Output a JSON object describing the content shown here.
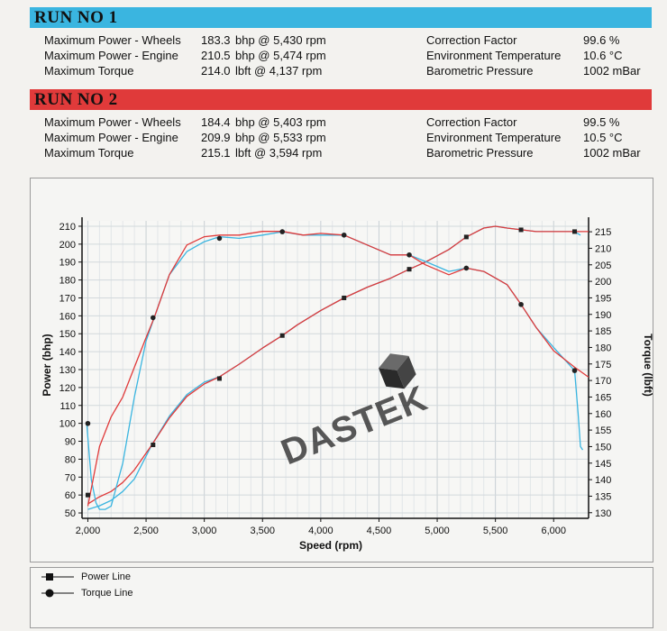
{
  "run1": {
    "title": "RUN NO 1",
    "color": "#3ab5e0",
    "rows": [
      {
        "label": "Maximum Power - Wheels",
        "value": "183.3",
        "unit": "bhp @ 5,430 rpm",
        "rlabel": "Correction Factor",
        "rvalue": "99.6 %"
      },
      {
        "label": "Maximum Power - Engine",
        "value": "210.5",
        "unit": "bhp @ 5,474 rpm",
        "rlabel": "Environment Temperature",
        "rvalue": "10.6 °C"
      },
      {
        "label": "Maximum Torque",
        "value": "214.0",
        "unit": "lbft @ 4,137 rpm",
        "rlabel": "Barometric Pressure",
        "rvalue": "1002 mBar"
      }
    ]
  },
  "run2": {
    "title": "RUN NO 2",
    "color": "#e03a3a",
    "rows": [
      {
        "label": "Maximum Power - Wheels",
        "value": "184.4",
        "unit": "bhp @ 5,403 rpm",
        "rlabel": "Correction Factor",
        "rvalue": "99.5 %"
      },
      {
        "label": "Maximum Power - Engine",
        "value": "209.9",
        "unit": "bhp @ 5,533 rpm",
        "rlabel": "Environment Temperature",
        "rvalue": "10.5 °C"
      },
      {
        "label": "Maximum Torque",
        "value": "215.1",
        "unit": "lbft @ 3,594 rpm",
        "rlabel": "Barometric Pressure",
        "rvalue": "1002 mBar"
      }
    ]
  },
  "watermark": "DASTEK",
  "legend": [
    {
      "label": "Power Line",
      "marker": "square"
    },
    {
      "label": "Torque Line",
      "marker": "circle"
    }
  ],
  "chart_data": {
    "type": "line",
    "xlabel": "Speed (rpm)",
    "ylabel_left": "Power (bhp)",
    "ylabel_right": "Torque (lbft)",
    "xlim": [
      1950,
      6300
    ],
    "ylim_left": [
      47,
      213
    ],
    "ylim_right": [
      128.3,
      218.3
    ],
    "xticks": [
      2000,
      2500,
      3000,
      3500,
      4000,
      4500,
      5000,
      5500,
      6000
    ],
    "xtick_labels": [
      "2,000",
      "2,500",
      "3,000",
      "3,500",
      "4,000",
      "4,500",
      "5,000",
      "5,500",
      "6,000"
    ],
    "yticks_left": [
      50,
      60,
      70,
      80,
      90,
      100,
      110,
      120,
      130,
      140,
      150,
      160,
      170,
      180,
      190,
      200,
      210
    ],
    "yticks_right": [
      130,
      135,
      140,
      145,
      150,
      155,
      160,
      165,
      170,
      175,
      180,
      185,
      190,
      195,
      200,
      205,
      210,
      215
    ],
    "grid": true,
    "series": [
      {
        "name": "Power Line",
        "run": "RUN NO 1",
        "axis": "left",
        "color": "#3ab5e0",
        "x": [
          2000,
          2100,
          2200,
          2300,
          2400,
          2550,
          2700,
          2850,
          3000,
          3130,
          3300,
          3500,
          3670,
          3800,
          4000,
          4200,
          4400,
          4600,
          4760,
          4900,
          5100,
          5250,
          5400,
          5500,
          5600,
          5720,
          5850,
          6000,
          6180,
          6230
        ],
        "y": [
          52,
          54,
          57,
          62,
          69,
          88,
          104,
          116,
          123,
          126,
          133,
          142,
          149,
          155,
          163,
          170,
          176,
          181,
          186,
          190,
          197,
          204,
          209,
          210,
          209,
          208,
          207,
          207,
          207,
          205
        ]
      },
      {
        "name": "Power Line",
        "run": "RUN NO 2",
        "axis": "left",
        "color": "#e03a3a",
        "x": [
          2000,
          2100,
          2200,
          2300,
          2400,
          2550,
          2700,
          2850,
          3000,
          3130,
          3300,
          3500,
          3670,
          3800,
          4000,
          4200,
          4400,
          4600,
          4760,
          4900,
          5100,
          5250,
          5400,
          5500,
          5600,
          5720,
          5850,
          6000,
          6180,
          6300
        ],
        "y": [
          55,
          59,
          62,
          67,
          74,
          88,
          103,
          115,
          122,
          126,
          133,
          142,
          149,
          155,
          163,
          170,
          176,
          181,
          186,
          190,
          197,
          204,
          209,
          210,
          209,
          208,
          207,
          207,
          207,
          207
        ]
      },
      {
        "name": "Torque Line",
        "run": "RUN NO 1",
        "axis": "right",
        "color": "#3ab5e0",
        "x": [
          1990,
          2030,
          2070,
          2100,
          2150,
          2200,
          2300,
          2400,
          2500,
          2570,
          2700,
          2850,
          3000,
          3130,
          3300,
          3500,
          3670,
          3850,
          4000,
          4200,
          4400,
          4600,
          4760,
          4900,
          5100,
          5250,
          5400,
          5600,
          5720,
          5850,
          6000,
          6180,
          6210,
          6230,
          6250
        ],
        "y": [
          157,
          140,
          133,
          131,
          131,
          132,
          145,
          165,
          182,
          189,
          202,
          209,
          212,
          213.5,
          213,
          214,
          215,
          214,
          214,
          214,
          211,
          208,
          208,
          206,
          203,
          204,
          203,
          199,
          193,
          186,
          180,
          173,
          160,
          150,
          149
        ]
      },
      {
        "name": "Torque Line",
        "run": "RUN NO 2",
        "axis": "right",
        "color": "#e03a3a",
        "x": [
          2000,
          2100,
          2200,
          2300,
          2400,
          2500,
          2570,
          2700,
          2850,
          3000,
          3130,
          3300,
          3500,
          3670,
          3850,
          4000,
          4200,
          4400,
          4600,
          4760,
          4900,
          5100,
          5250,
          5400,
          5600,
          5720,
          5850,
          6000,
          6180,
          6300
        ],
        "y": [
          132,
          150,
          159,
          165,
          174,
          183,
          189,
          202,
          211,
          213.5,
          214,
          214,
          215.1,
          215.1,
          214,
          214.5,
          214,
          211,
          208,
          208,
          205,
          202,
          204,
          203,
          199,
          193,
          186,
          179,
          174,
          171
        ]
      }
    ],
    "markers": {
      "power": {
        "x": [
          2000,
          2560,
          3130,
          3670,
          4200,
          4760,
          5250,
          5720,
          6180
        ],
        "y": [
          60,
          88,
          125,
          149,
          170,
          186,
          204,
          208,
          207
        ]
      },
      "torque": {
        "x": [
          2000,
          2560,
          3130,
          3670,
          4200,
          4760,
          5250,
          5720,
          6180
        ],
        "y": [
          157,
          189,
          213,
          215,
          214,
          208,
          204,
          193,
          173
        ]
      }
    }
  }
}
